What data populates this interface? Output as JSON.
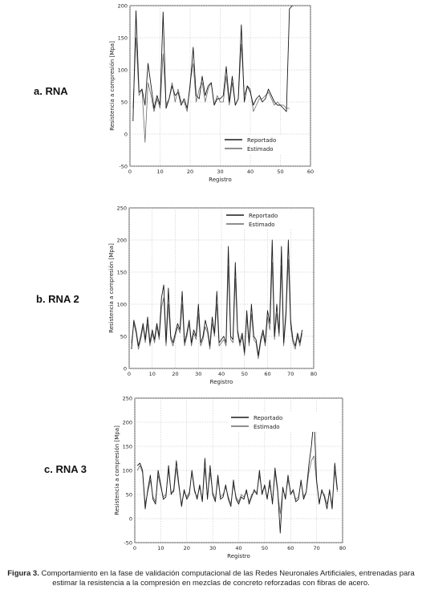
{
  "panels": [
    {
      "label": "a. RNA"
    },
    {
      "label": "b. RNA 2"
    },
    {
      "label": "c. RNA 3"
    }
  ],
  "caption": {
    "prefix": "Figura 3.",
    "text": "Comportamiento en la fase de validación computacional de las Redes Neuronales Artificiales, entrenadas para estimar la resistencia a la compresión en mezclas de concreto reforzadas con fibras de acero."
  },
  "chart_data": [
    {
      "type": "line",
      "xlabel": "Registro",
      "ylabel": "Resistencia a compresión [Mpa]",
      "xlim": [
        0,
        60
      ],
      "ylim": [
        -50,
        200
      ],
      "xticks": [
        0,
        10,
        20,
        30,
        40,
        50,
        60
      ],
      "yticks": [
        -50,
        0,
        50,
        100,
        150,
        200
      ],
      "grid": true,
      "legend": "bottom-right",
      "series": [
        {
          "name": "Reportado",
          "color": "#1a1a1a",
          "x": [
            1,
            2,
            3,
            4,
            5,
            6,
            7,
            8,
            9,
            10,
            11,
            12,
            13,
            14,
            15,
            16,
            17,
            18,
            19,
            20,
            21,
            22,
            23,
            24,
            25,
            26,
            27,
            28,
            29,
            30,
            31,
            32,
            33,
            34,
            35,
            36,
            37,
            38,
            39,
            40,
            41,
            42,
            43,
            44,
            45,
            46,
            47,
            48,
            49,
            50,
            51,
            52,
            53,
            54
          ],
          "values": [
            20,
            192,
            65,
            70,
            45,
            110,
            75,
            40,
            60,
            45,
            190,
            40,
            55,
            75,
            60,
            65,
            45,
            55,
            40,
            75,
            135,
            60,
            55,
            90,
            60,
            75,
            80,
            45,
            55,
            55,
            60,
            105,
            50,
            90,
            45,
            55,
            170,
            50,
            75,
            65,
            45,
            55,
            60,
            50,
            55,
            70,
            60,
            50,
            45,
            45,
            40,
            35,
            195,
            200
          ]
        },
        {
          "name": "Estimado",
          "color": "#6a6a6a",
          "x": [
            1,
            2,
            3,
            4,
            5,
            6,
            7,
            8,
            9,
            10,
            11,
            12,
            13,
            14,
            15,
            16,
            17,
            18,
            19,
            20,
            21,
            22,
            23,
            24,
            25,
            26,
            27,
            28,
            29,
            30,
            31,
            32,
            33,
            34,
            35,
            36,
            37,
            38,
            39,
            40,
            41,
            42,
            43,
            44,
            45,
            46,
            47,
            48,
            49,
            50,
            51,
            52,
            53
          ],
          "values": [
            40,
            150,
            60,
            70,
            -13,
            80,
            60,
            35,
            55,
            40,
            125,
            45,
            55,
            80,
            50,
            70,
            50,
            50,
            35,
            80,
            110,
            50,
            70,
            80,
            50,
            70,
            80,
            45,
            60,
            50,
            50,
            90,
            45,
            80,
            45,
            55,
            140,
            60,
            75,
            70,
            35,
            45,
            55,
            55,
            60,
            65,
            55,
            45,
            50,
            45,
            45,
            40,
            40
          ]
        }
      ]
    },
    {
      "type": "line",
      "xlabel": "Registro",
      "ylabel": "Resistencia a compresión [Mpa]",
      "xlim": [
        0,
        80
      ],
      "ylim": [
        0,
        250
      ],
      "xticks": [
        0,
        10,
        20,
        30,
        40,
        50,
        60,
        70,
        80
      ],
      "yticks": [
        0,
        50,
        100,
        150,
        200,
        250
      ],
      "grid": true,
      "legend": "top-right",
      "series": [
        {
          "name": "Reportado",
          "color": "#1a1a1a",
          "x": [
            1,
            2,
            3,
            4,
            5,
            6,
            7,
            8,
            9,
            10,
            11,
            12,
            13,
            14,
            15,
            16,
            17,
            18,
            19,
            20,
            21,
            22,
            23,
            24,
            25,
            26,
            27,
            28,
            29,
            30,
            31,
            32,
            33,
            34,
            35,
            36,
            37,
            38,
            39,
            40,
            41,
            42,
            43,
            44,
            45,
            46,
            47,
            48,
            49,
            50,
            51,
            52,
            53,
            54,
            55,
            56,
            57,
            58,
            59,
            60,
            61,
            62,
            63,
            64,
            65,
            66,
            67,
            68,
            69,
            70,
            71,
            72,
            73,
            74,
            75
          ],
          "values": [
            30,
            75,
            60,
            35,
            50,
            70,
            45,
            80,
            40,
            60,
            45,
            70,
            50,
            110,
            130,
            40,
            125,
            50,
            40,
            55,
            70,
            60,
            120,
            40,
            55,
            75,
            40,
            60,
            50,
            100,
            40,
            50,
            75,
            60,
            35,
            80,
            55,
            120,
            40,
            45,
            50,
            40,
            190,
            50,
            45,
            165,
            60,
            40,
            55,
            25,
            90,
            40,
            100,
            50,
            45,
            20,
            45,
            60,
            40,
            90,
            70,
            200,
            50,
            100,
            55,
            190,
            40,
            90,
            200,
            75,
            45,
            35,
            55,
            40,
            60
          ]
        },
        {
          "name": "Estimado",
          "color": "#6a6a6a",
          "x": [
            1,
            2,
            3,
            4,
            5,
            6,
            7,
            8,
            9,
            10,
            11,
            12,
            13,
            14,
            15,
            16,
            17,
            18,
            19,
            20,
            21,
            22,
            23,
            24,
            25,
            26,
            27,
            28,
            29,
            30,
            31,
            32,
            33,
            34,
            35,
            36,
            37,
            38,
            39,
            40,
            41,
            42,
            43,
            44,
            45,
            46,
            47,
            48,
            49,
            50,
            51,
            52,
            53,
            54,
            55,
            56,
            57,
            58,
            59,
            60,
            61,
            62,
            63,
            64,
            65,
            66,
            67,
            68,
            69,
            70,
            71,
            72,
            73,
            74,
            75
          ],
          "values": [
            40,
            70,
            55,
            30,
            45,
            65,
            40,
            70,
            35,
            55,
            40,
            65,
            45,
            95,
            110,
            35,
            100,
            45,
            35,
            50,
            65,
            55,
            100,
            35,
            50,
            70,
            35,
            55,
            45,
            85,
            35,
            45,
            65,
            55,
            30,
            70,
            50,
            100,
            35,
            40,
            45,
            35,
            160,
            45,
            40,
            140,
            55,
            35,
            50,
            20,
            80,
            35,
            85,
            45,
            40,
            15,
            40,
            55,
            35,
            80,
            60,
            165,
            45,
            85,
            50,
            160,
            35,
            80,
            170,
            65,
            40,
            30,
            50,
            35,
            55
          ]
        }
      ]
    },
    {
      "type": "line",
      "xlabel": "Registro",
      "ylabel": "Resistencia a compresión [Mpa]",
      "xlim": [
        0,
        80
      ],
      "ylim": [
        -50,
        250
      ],
      "xticks": [
        0,
        10,
        20,
        30,
        40,
        50,
        60,
        70,
        80
      ],
      "yticks": [
        -50,
        0,
        50,
        100,
        150,
        200,
        250
      ],
      "grid": true,
      "legend": "top-right",
      "series": [
        {
          "name": "Reportado",
          "color": "#1a1a1a",
          "x": [
            1,
            2,
            3,
            4,
            5,
            6,
            7,
            8,
            9,
            10,
            11,
            12,
            13,
            14,
            15,
            16,
            17,
            18,
            19,
            20,
            21,
            22,
            23,
            24,
            25,
            26,
            27,
            28,
            29,
            30,
            31,
            32,
            33,
            34,
            35,
            36,
            37,
            38,
            39,
            40,
            41,
            42,
            43,
            44,
            45,
            46,
            47,
            48,
            49,
            50,
            51,
            52,
            53,
            54,
            55,
            56,
            57,
            58,
            59,
            60,
            61,
            62,
            63,
            64,
            65,
            66,
            67,
            68,
            69,
            70,
            71,
            72,
            73,
            74,
            75,
            76,
            77,
            78
          ],
          "values": [
            110,
            115,
            100,
            20,
            60,
            90,
            40,
            30,
            100,
            70,
            40,
            45,
            110,
            50,
            60,
            120,
            70,
            25,
            60,
            40,
            50,
            100,
            60,
            40,
            70,
            35,
            125,
            40,
            110,
            50,
            35,
            90,
            40,
            45,
            70,
            40,
            25,
            80,
            40,
            30,
            45,
            40,
            60,
            30,
            45,
            60,
            50,
            100,
            50,
            70,
            40,
            80,
            30,
            105,
            60,
            -30,
            65,
            40,
            90,
            50,
            60,
            35,
            40,
            80,
            40,
            55,
            110,
            150,
            210,
            80,
            30,
            60,
            45,
            20,
            60,
            20,
            115,
            60
          ]
        },
        {
          "name": "Estimado",
          "color": "#6a6a6a",
          "x": [
            1,
            2,
            3,
            4,
            5,
            6,
            7,
            8,
            9,
            10,
            11,
            12,
            13,
            14,
            15,
            16,
            17,
            18,
            19,
            20,
            21,
            22,
            23,
            24,
            25,
            26,
            27,
            28,
            29,
            30,
            31,
            32,
            33,
            34,
            35,
            36,
            37,
            38,
            39,
            40,
            41,
            42,
            43,
            44,
            45,
            46,
            47,
            48,
            49,
            50,
            51,
            52,
            53,
            54,
            55,
            56,
            57,
            58,
            59,
            60,
            61,
            62,
            63,
            64,
            65,
            66,
            67,
            68,
            69,
            70,
            71,
            72,
            73,
            74,
            75,
            76,
            77,
            78
          ],
          "values": [
            100,
            110,
            95,
            30,
            55,
            80,
            45,
            35,
            90,
            65,
            45,
            50,
            100,
            55,
            55,
            105,
            65,
            30,
            55,
            45,
            55,
            95,
            55,
            45,
            65,
            40,
            105,
            45,
            95,
            55,
            40,
            80,
            45,
            50,
            65,
            45,
            30,
            70,
            45,
            35,
            50,
            45,
            55,
            35,
            50,
            55,
            55,
            90,
            55,
            65,
            45,
            70,
            35,
            95,
            55,
            10,
            60,
            45,
            80,
            55,
            55,
            40,
            45,
            75,
            45,
            55,
            95,
            120,
            130,
            75,
            35,
            55,
            50,
            30,
            55,
            30,
            100,
            55
          ]
        }
      ]
    }
  ]
}
